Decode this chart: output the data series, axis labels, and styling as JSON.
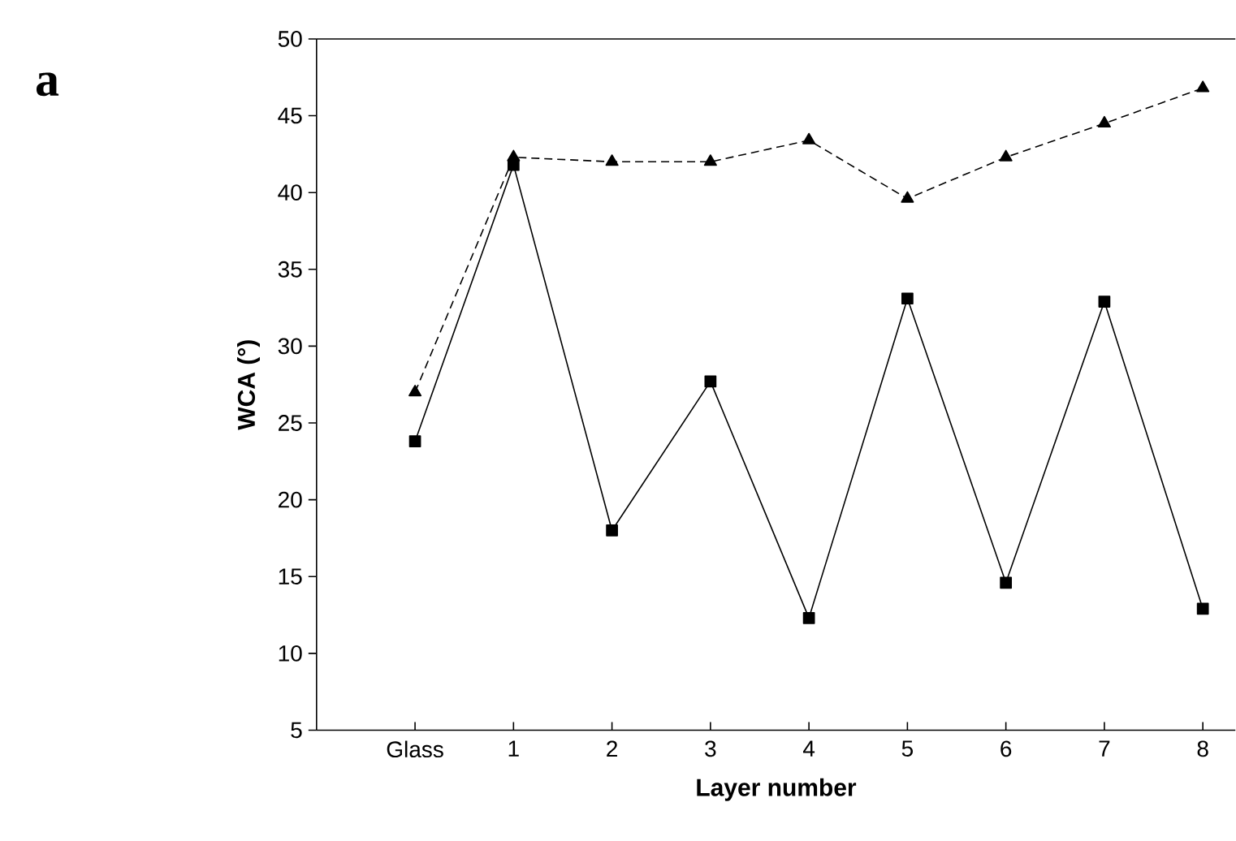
{
  "chart_data": {
    "type": "line",
    "xlabel": "Layer number",
    "ylabel": "WCA (°)",
    "annotations": [
      "**a**"
    ],
    "categories": [
      "Glass",
      "1",
      "2",
      "3",
      "4",
      "5",
      "6",
      "7",
      "8"
    ],
    "series": [
      {
        "color": "#000000",
        "marker": "square",
        "line_style": "solid",
        "values": [
          23.8,
          41.8,
          18.0,
          27.7,
          12.3,
          33.1,
          14.6,
          32.9,
          12.9
        ]
      },
      {
        "color": "#000000",
        "marker": "triangle",
        "line_style": "dashed",
        "values": [
          27.0,
          42.3,
          42.0,
          42.0,
          43.4,
          39.6,
          42.3,
          44.5,
          46.8
        ]
      }
    ],
    "ylim": [
      5,
      50
    ],
    "yticks": [
      5,
      10,
      15,
      20,
      25,
      30,
      35,
      40,
      45,
      50
    ]
  }
}
